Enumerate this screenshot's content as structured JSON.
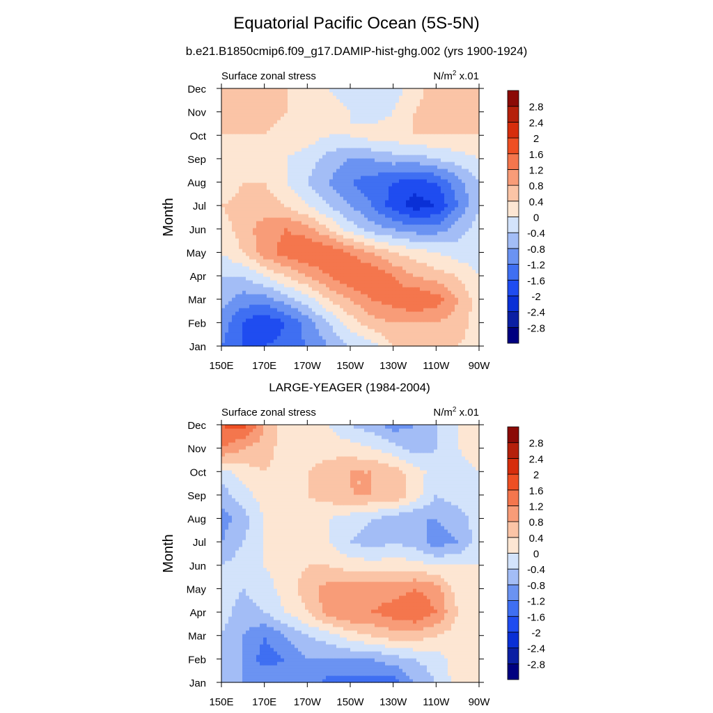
{
  "title": "Equatorial Pacific Ocean (5S-5N)",
  "subtitle": "b.e21.B1850cmip6.f09_g17.DAMIP-hist-ghg.002 (yrs 1900-1924)",
  "chart_data": [
    {
      "type": "heatmap",
      "panel_title": "",
      "left_label": "Surface zonal stress",
      "units_label": "N/m",
      "units_exponent": "2",
      "units_scale": "x.01",
      "ylabel": "Month",
      "x_ticks": [
        "150E",
        "170E",
        "170W",
        "150W",
        "130W",
        "110W",
        "90W"
      ],
      "x_ticks_deg": [
        150,
        170,
        190,
        210,
        230,
        250,
        270
      ],
      "xlim_deg": [
        150,
        270
      ],
      "y_ticks": [
        "Jan",
        "Feb",
        "Mar",
        "Apr",
        "May",
        "Jun",
        "Jul",
        "Aug",
        "Sep",
        "Oct",
        "Nov",
        "Dec"
      ],
      "field": {
        "x_deg": [
          150,
          160,
          170,
          180,
          190,
          200,
          210,
          220,
          230,
          240,
          250,
          260,
          270
        ],
        "months": [
          "Jan",
          "Feb",
          "Mar",
          "Apr",
          "May",
          "Jun",
          "Jul",
          "Aug",
          "Sep",
          "Oct",
          "Nov",
          "Dec"
        ],
        "values": [
          [
            -1.2,
            -1.6,
            -1.6,
            -1.4,
            -1.2,
            -0.8,
            -0.4,
            -0.2,
            0.4,
            0.6,
            0.6,
            0.4,
            0.2
          ],
          [
            -1.0,
            -1.6,
            -2.0,
            -1.6,
            -1.0,
            -0.4,
            0.2,
            0.6,
            0.8,
            0.8,
            0.8,
            0.6,
            0.2
          ],
          [
            -0.6,
            -1.0,
            -1.0,
            -0.6,
            -0.2,
            0.4,
            0.8,
            1.2,
            1.4,
            1.6,
            1.4,
            0.8,
            0.2
          ],
          [
            -0.4,
            -0.4,
            0.0,
            0.4,
            0.8,
            1.2,
            1.6,
            1.6,
            1.2,
            0.8,
            0.6,
            0.4,
            0.0
          ],
          [
            0.0,
            0.4,
            1.0,
            1.4,
            1.6,
            1.6,
            1.2,
            0.8,
            0.4,
            0.2,
            0.0,
            -0.2,
            -0.2
          ],
          [
            0.2,
            0.6,
            1.0,
            1.2,
            1.0,
            0.4,
            -0.2,
            -0.6,
            -0.8,
            -1.0,
            -1.0,
            -0.6,
            -0.2
          ],
          [
            0.4,
            0.6,
            0.6,
            0.4,
            0.0,
            -0.4,
            -0.8,
            -1.2,
            -1.8,
            -2.2,
            -2.0,
            -1.2,
            -0.4
          ],
          [
            0.0,
            0.4,
            0.4,
            0.0,
            -0.4,
            -0.8,
            -1.2,
            -1.4,
            -1.6,
            -1.8,
            -1.6,
            -1.0,
            -0.4
          ],
          [
            0.2,
            0.2,
            0.2,
            0.0,
            -0.2,
            -0.6,
            -0.8,
            -0.8,
            -0.6,
            -0.6,
            -0.4,
            -0.2,
            0.0
          ],
          [
            0.4,
            0.4,
            0.4,
            0.2,
            0.2,
            0.0,
            0.0,
            0.2,
            0.2,
            0.4,
            0.4,
            0.4,
            0.4
          ],
          [
            0.6,
            0.8,
            0.6,
            0.4,
            0.2,
            0.2,
            0.0,
            -0.2,
            0.0,
            0.4,
            0.6,
            0.6,
            0.6
          ],
          [
            0.8,
            0.8,
            0.6,
            0.4,
            0.2,
            0.0,
            -0.2,
            -0.4,
            -0.2,
            0.2,
            0.6,
            0.6,
            0.6
          ]
        ]
      }
    },
    {
      "type": "heatmap",
      "panel_title": "LARGE-YEAGER (1984-2004)",
      "left_label": "Surface zonal stress",
      "units_label": "N/m",
      "units_exponent": "2",
      "units_scale": "x.01",
      "ylabel": "Month",
      "x_ticks": [
        "150E",
        "170E",
        "170W",
        "150W",
        "130W",
        "110W",
        "90W"
      ],
      "x_ticks_deg": [
        150,
        170,
        190,
        210,
        230,
        250,
        270
      ],
      "xlim_deg": [
        150,
        270
      ],
      "y_ticks": [
        "Jan",
        "Feb",
        "Mar",
        "Apr",
        "May",
        "Jun",
        "Jul",
        "Aug",
        "Sep",
        "Oct",
        "Nov",
        "Dec"
      ],
      "field": {
        "x_deg": [
          150,
          160,
          170,
          180,
          190,
          200,
          210,
          220,
          230,
          240,
          250,
          260,
          270
        ],
        "months": [
          "Jan",
          "Feb",
          "Mar",
          "Apr",
          "May",
          "Jun",
          "Jul",
          "Aug",
          "Sep",
          "Oct",
          "Nov",
          "Dec"
        ],
        "values": [
          [
            -0.4,
            -0.8,
            -0.8,
            -0.8,
            -0.8,
            -1.4,
            -1.4,
            -1.4,
            -1.4,
            -0.8,
            -0.4,
            0.2,
            0.2
          ],
          [
            -0.4,
            -0.8,
            -1.4,
            -1.2,
            -0.8,
            -0.8,
            -0.8,
            -0.8,
            -0.6,
            -0.4,
            -0.2,
            0.2,
            0.2
          ],
          [
            -0.4,
            -0.8,
            -1.2,
            -0.8,
            -0.4,
            -0.2,
            0.2,
            0.4,
            0.6,
            0.6,
            0.4,
            0.2,
            0.2
          ],
          [
            -0.2,
            -0.6,
            -0.4,
            0.0,
            0.4,
            1.0,
            1.2,
            1.2,
            1.4,
            1.6,
            1.2,
            0.4,
            0.2
          ],
          [
            -0.2,
            -0.4,
            -0.2,
            0.2,
            0.6,
            1.0,
            1.0,
            1.0,
            1.0,
            1.2,
            1.0,
            0.2,
            0.2
          ],
          [
            -0.4,
            -0.2,
            0.0,
            0.2,
            0.4,
            0.4,
            0.2,
            0.2,
            0.2,
            0.2,
            0.0,
            0.0,
            0.0
          ],
          [
            -0.8,
            -0.4,
            0.0,
            0.2,
            0.2,
            0.0,
            -0.4,
            -0.6,
            -0.4,
            -0.6,
            -1.0,
            -0.8,
            -0.2
          ],
          [
            -1.0,
            -0.6,
            0.0,
            0.2,
            0.2,
            0.0,
            -0.2,
            -0.4,
            -0.6,
            -0.8,
            -0.8,
            -0.6,
            -0.2
          ],
          [
            -0.6,
            -0.2,
            0.2,
            0.2,
            0.4,
            0.6,
            0.8,
            0.8,
            0.8,
            0.2,
            -0.4,
            -0.2,
            0.0
          ],
          [
            -0.2,
            0.2,
            0.4,
            0.2,
            0.4,
            0.6,
            0.8,
            0.8,
            0.6,
            0.2,
            -0.2,
            -0.2,
            0.0
          ],
          [
            1.2,
            0.8,
            0.6,
            0.2,
            0.2,
            0.2,
            0.2,
            0.0,
            -0.2,
            -0.6,
            -0.4,
            0.0,
            0.2
          ],
          [
            1.6,
            1.8,
            0.8,
            0.2,
            0.2,
            0.0,
            -0.4,
            -0.6,
            -1.0,
            -0.8,
            -0.4,
            0.0,
            0.2
          ]
        ]
      }
    }
  ],
  "colorbar": {
    "levels": [
      -2.8,
      -2.4,
      -2,
      -1.6,
      -1.2,
      -0.8,
      -0.4,
      0,
      0.4,
      0.8,
      1.2,
      1.6,
      2,
      2.4,
      2.8
    ],
    "labels": [
      "2.8",
      "2.4",
      "2",
      "1.6",
      "1.2",
      "0.8",
      "0.4",
      "0",
      "-0.4",
      "-0.8",
      "-1.2",
      "-1.6",
      "-2",
      "-2.4",
      "-2.8"
    ],
    "colors": [
      "#000080",
      "#0b1fa3",
      "#0a30d6",
      "#1f4cf0",
      "#3f6ff2",
      "#6b93f2",
      "#a3bdf6",
      "#d3e3fb",
      "#fde6d3",
      "#fbc4a6",
      "#f89c78",
      "#f4764d",
      "#ee4f23",
      "#d62d0c",
      "#b5200b",
      "#8b0a06"
    ]
  }
}
